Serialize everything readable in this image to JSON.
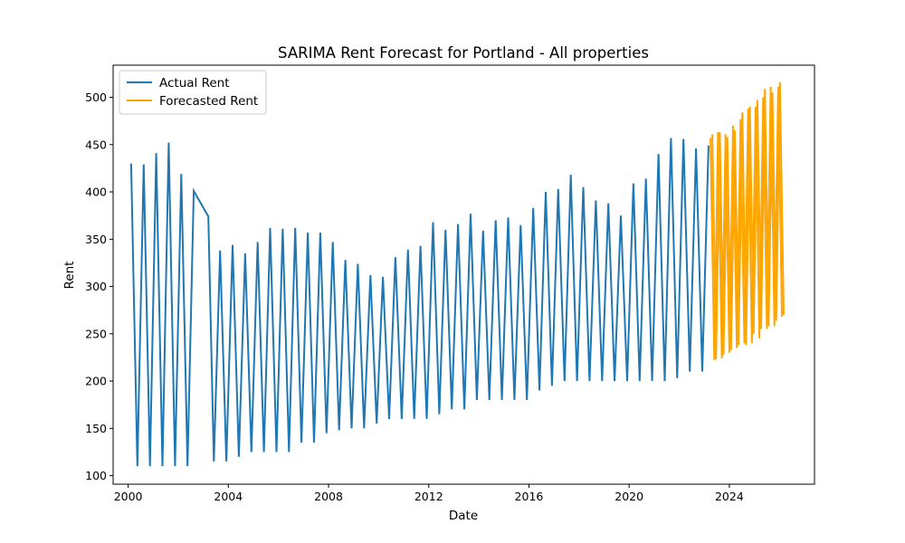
{
  "chart_data": {
    "type": "line",
    "title": "SARIMA Rent Forecast for Portland - All properties",
    "xlabel": "Date",
    "ylabel": "Rent",
    "xlim": [
      1999.4,
      2027.4
    ],
    "ylim": [
      91,
      534
    ],
    "x_ticks": [
      2000,
      2004,
      2008,
      2012,
      2016,
      2020,
      2024
    ],
    "y_ticks": [
      100,
      150,
      200,
      250,
      300,
      350,
      400,
      450,
      500
    ],
    "grid": false,
    "legend": {
      "position": "top-left"
    },
    "series": [
      {
        "name": "Actual Rent",
        "color": "#1f77b4",
        "x": [
          2000.12,
          2000.37,
          2000.62,
          2000.87,
          2001.12,
          2001.37,
          2001.62,
          2001.87,
          2002.12,
          2002.37,
          2002.62,
          2003.2,
          2003.42,
          2003.67,
          2003.92,
          2004.17,
          2004.42,
          2004.67,
          2004.92,
          2005.17,
          2005.42,
          2005.67,
          2005.92,
          2006.17,
          2006.42,
          2006.67,
          2006.92,
          2007.17,
          2007.42,
          2007.67,
          2007.92,
          2008.17,
          2008.42,
          2008.67,
          2008.92,
          2009.17,
          2009.42,
          2009.67,
          2009.92,
          2010.17,
          2010.42,
          2010.67,
          2010.92,
          2011.17,
          2011.42,
          2011.67,
          2011.92,
          2012.17,
          2012.42,
          2012.67,
          2012.92,
          2013.17,
          2013.42,
          2013.67,
          2013.92,
          2014.17,
          2014.42,
          2014.67,
          2014.92,
          2015.17,
          2015.42,
          2015.67,
          2015.92,
          2016.17,
          2016.42,
          2016.67,
          2016.92,
          2017.17,
          2017.42,
          2017.67,
          2017.92,
          2018.17,
          2018.42,
          2018.67,
          2018.92,
          2019.17,
          2019.42,
          2019.67,
          2019.92,
          2020.17,
          2020.42,
          2020.67,
          2020.92,
          2021.17,
          2021.42,
          2021.67,
          2021.92,
          2022.17,
          2022.42,
          2022.67,
          2022.92,
          2023.17
        ],
        "values": [
          430,
          110,
          429,
          110,
          441,
          110,
          452,
          110,
          419,
          110,
          401,
          374,
          115,
          338,
          115,
          344,
          120,
          335,
          125,
          347,
          125,
          362,
          125,
          361,
          125,
          362,
          135,
          357,
          135,
          357,
          145,
          347,
          148,
          328,
          150,
          324,
          150,
          312,
          155,
          310,
          160,
          331,
          160,
          339,
          160,
          343,
          160,
          368,
          165,
          360,
          170,
          366,
          170,
          377,
          180,
          359,
          180,
          370,
          180,
          373,
          180,
          365,
          180,
          383,
          190,
          400,
          195,
          403,
          200,
          418,
          200,
          405,
          200,
          391,
          200,
          388,
          200,
          375,
          200,
          409,
          200,
          414,
          200,
          440,
          200,
          457,
          203,
          456,
          210,
          446,
          210,
          449
        ]
      },
      {
        "name": "Forecasted Rent",
        "color": "#ffa500",
        "x": [
          2023.25,
          2023.4,
          2023.55,
          2023.7,
          2023.85,
          2024.0,
          2024.15,
          2024.3,
          2024.45,
          2024.6,
          2024.75,
          2024.9,
          2025.05,
          2025.2,
          2025.35,
          2025.5,
          2025.65,
          2025.8,
          2025.95,
          2026.1
        ],
        "values": [
          457,
          222,
          463,
          224,
          461,
          230,
          470,
          235,
          477,
          240,
          488,
          240,
          490,
          245,
          500,
          255,
          511,
          258,
          511,
          268
        ],
        "values_alt": [
          461,
          223,
          463,
          228,
          458,
          233,
          465,
          238,
          484,
          238,
          490,
          250,
          497,
          255,
          509,
          258,
          505,
          264,
          516,
          270
        ]
      }
    ]
  }
}
